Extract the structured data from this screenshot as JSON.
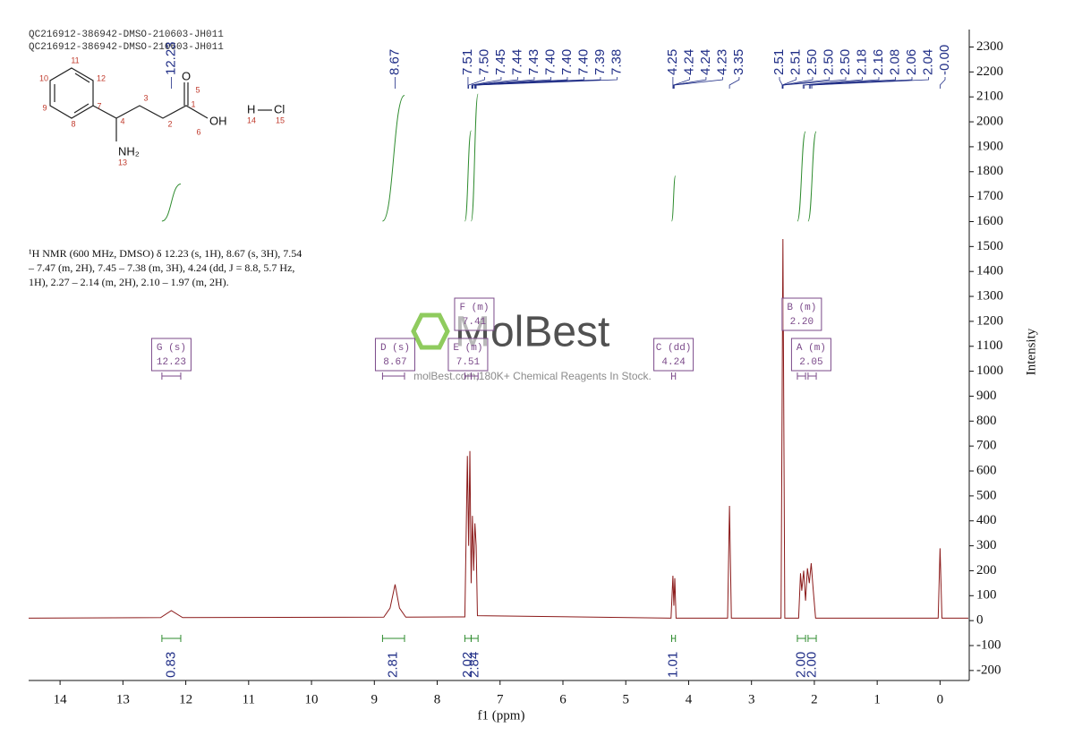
{
  "header": {
    "lines": [
      "QC216912-386942-DMSO-210603-JH011",
      "QC216912-386942-DMSO-210603-JH011"
    ]
  },
  "molecule": {
    "atoms": [
      "O",
      "OH",
      "NH₂",
      "H",
      "Cl"
    ],
    "numbers": [
      "1",
      "2",
      "3",
      "4",
      "5",
      "6",
      "7",
      "8",
      "9",
      "10",
      "11",
      "12",
      "13",
      "14",
      "15"
    ]
  },
  "description": {
    "lines": [
      "¹H NMR (600 MHz, DMSO) δ 12.23 (s, 1H), 8.67 (s, 3H), 7.54",
      "– 7.47 (m, 2H), 7.45 – 7.38 (m, 3H), 4.24 (dd, J = 8.8, 5.7 Hz,",
      "1H), 2.27 – 2.14 (m, 2H), 2.10 – 1.97 (m, 2H)."
    ]
  },
  "watermark": {
    "brand": "MolBest",
    "tagline": "molBest.com,180K+ Chemical Reagents In Stock."
  },
  "chart_data": {
    "type": "line",
    "x": [
      14.5,
      12.4,
      12.23,
      12.05,
      8.85,
      8.75,
      8.67,
      8.6,
      8.5,
      7.56,
      7.52,
      7.5,
      7.48,
      7.46,
      7.44,
      7.42,
      7.4,
      7.38,
      7.36,
      4.28,
      4.25,
      4.235,
      4.22,
      4.2,
      3.38,
      3.35,
      3.32,
      2.53,
      2.5,
      2.47,
      2.25,
      2.22,
      2.2,
      2.17,
      2.14,
      2.11,
      2.08,
      2.05,
      2.02,
      1.98,
      0.03,
      0,
      -0.03,
      -0.45
    ],
    "values": [
      10,
      12,
      40,
      12,
      14,
      50,
      145,
      50,
      14,
      15,
      660,
      300,
      680,
      150,
      420,
      200,
      390,
      300,
      20,
      10,
      180,
      60,
      170,
      10,
      10,
      460,
      10,
      10,
      1530,
      10,
      10,
      190,
      120,
      200,
      80,
      210,
      150,
      230,
      130,
      10,
      10,
      290,
      10,
      10
    ],
    "color": "#8b1a1a",
    "xlim": [
      14.5,
      -0.45
    ],
    "xticks": [
      14,
      13,
      12,
      11,
      10,
      9,
      8,
      7,
      6,
      5,
      4,
      3,
      2,
      1,
      0
    ],
    "xlabel": "f1 (ppm)",
    "ylim": [
      -240,
      2370
    ],
    "yticks": [
      -200,
      -100,
      0,
      100,
      200,
      300,
      400,
      500,
      600,
      700,
      800,
      900,
      1000,
      1100,
      1200,
      1300,
      1400,
      1500,
      1600,
      1700,
      1800,
      1900,
      2000,
      2100,
      2200,
      2300
    ],
    "ylabel": "Intensity",
    "peak_labels": [
      12.23,
      8.67,
      7.51,
      {
        "value": 7.5,
        "label": "7.50"
      },
      7.45,
      7.44,
      7.43,
      {
        "value": 7.4,
        "label": "7.40"
      },
      {
        "value": 7.4,
        "label": "7.40"
      },
      {
        "value": 7.4,
        "label": "7.40"
      },
      7.39,
      7.38,
      4.25,
      4.24,
      4.24,
      4.23,
      3.35,
      2.51,
      2.51,
      {
        "value": 2.5,
        "label": "2.50"
      },
      {
        "value": 2.5,
        "label": "2.50"
      },
      {
        "value": 2.5,
        "label": "2.50"
      },
      2.18,
      2.16,
      2.08,
      2.06,
      2.04,
      {
        "value": 0,
        "label": "-0.00"
      }
    ],
    "peak_label_color": "#1f2d86",
    "integrals": [
      {
        "x": [
          12.38,
          12.08
        ],
        "value": 0.83
      },
      {
        "x": [
          8.87,
          8.52
        ],
        "value": 2.81
      },
      {
        "x": [
          7.56,
          7.46
        ],
        "value": 2.02
      },
      {
        "x": [
          7.46,
          7.35
        ],
        "value": 2.84
      },
      {
        "x": [
          4.27,
          4.21
        ],
        "value": 1.01
      },
      {
        "x": [
          2.27,
          2.14
        ],
        "value": {
          "value": 2,
          "label": "2.00"
        }
      },
      {
        "x": [
          2.1,
          1.97
        ],
        "value": {
          "value": 2,
          "label": "2.00"
        }
      }
    ],
    "integral_color": "#2e8b2e",
    "multiplets": [
      {
        "name": "G (s)",
        "shift": 12.23
      },
      {
        "name": "D (s)",
        "shift": 8.67
      },
      {
        "name": "E (m)",
        "shift": 7.51
      },
      {
        "name": "F (m)",
        "shift": 7.41
      },
      {
        "name": "C (dd)",
        "shift": 4.24
      },
      {
        "name": "B (m)",
        "shift": {
          "value": 2.2,
          "label": "2.20"
        }
      },
      {
        "name": "A (m)",
        "shift": 2.05
      }
    ],
    "multiplet_color": "#7b4a8a"
  }
}
